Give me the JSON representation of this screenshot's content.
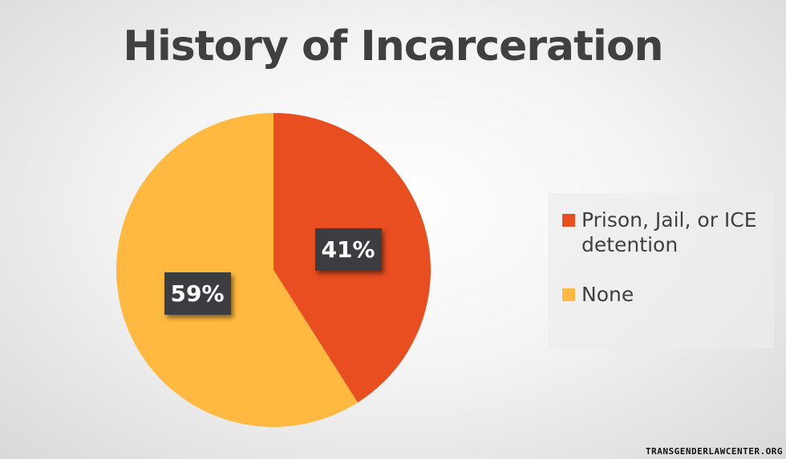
{
  "chart_data": {
    "type": "pie",
    "title": "History of Incarceration",
    "categories": [
      "Prison, Jail, or ICE detention",
      "None"
    ],
    "values": [
      41,
      59
    ],
    "data_labels": [
      "41%",
      "59%"
    ],
    "colors": [
      "#e84e1f",
      "#ffb940"
    ],
    "start_angle": "12 o'clock, clockwise",
    "legend_placement": "right"
  },
  "watermark": "TRANSGENDERLAWCENTER.ORG"
}
